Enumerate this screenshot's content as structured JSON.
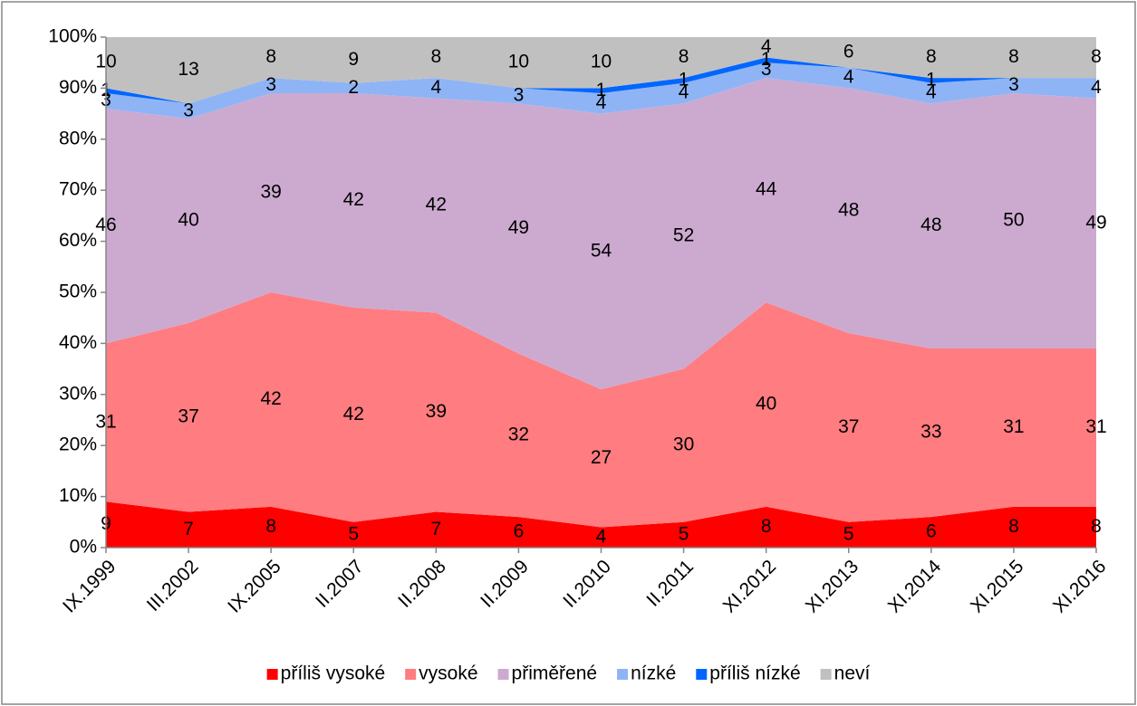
{
  "chart_data": {
    "type": "stacked_area",
    "categories": [
      "IX.1999",
      "III.2002",
      "IX.2005",
      "II.2007",
      "II.2008",
      "II.2009",
      "II.2010",
      "II.2011",
      "XI.2012",
      "XI.2013",
      "XI.2014",
      "XI.2015",
      "XI.2016"
    ],
    "series": [
      {
        "name": "příliš vysoké",
        "color": "#ff0000",
        "values": [
          9,
          7,
          8,
          5,
          7,
          6,
          4,
          5,
          8,
          5,
          6,
          8,
          8
        ]
      },
      {
        "name": "vysoké",
        "color": "#ff7c80",
        "values": [
          31,
          37,
          42,
          42,
          39,
          32,
          27,
          30,
          40,
          37,
          33,
          31,
          31
        ]
      },
      {
        "name": "přiměřené",
        "color": "#ccaad0",
        "values": [
          46,
          40,
          39,
          42,
          42,
          49,
          54,
          52,
          44,
          48,
          48,
          50,
          49
        ]
      },
      {
        "name": "nízké",
        "color": "#8fb4f5",
        "values": [
          3,
          3,
          3,
          2,
          4,
          3,
          4,
          4,
          3,
          4,
          4,
          3,
          4
        ]
      },
      {
        "name": "příliš nízké",
        "color": "#0066ff",
        "values": [
          1,
          0,
          0,
          0,
          0,
          0,
          1,
          1,
          1,
          0,
          1,
          0,
          0
        ]
      },
      {
        "name": "neví",
        "color": "#c0c0c0",
        "values": [
          10,
          13,
          8,
          9,
          8,
          10,
          10,
          8,
          4,
          6,
          8,
          8,
          8
        ]
      }
    ],
    "ylim": [
      0,
      100
    ],
    "yticks": [
      {
        "value": 0,
        "label": "0%"
      },
      {
        "value": 10,
        "label": "10%"
      },
      {
        "value": 20,
        "label": "20%"
      },
      {
        "value": 30,
        "label": "30%"
      },
      {
        "value": 40,
        "label": "40%"
      },
      {
        "value": 50,
        "label": "50%"
      },
      {
        "value": 60,
        "label": "60%"
      },
      {
        "value": 70,
        "label": "70%"
      },
      {
        "value": 80,
        "label": "80%"
      },
      {
        "value": 90,
        "label": "90%"
      },
      {
        "value": 100,
        "label": "100%"
      }
    ],
    "grid": false,
    "legend": "bottom"
  }
}
